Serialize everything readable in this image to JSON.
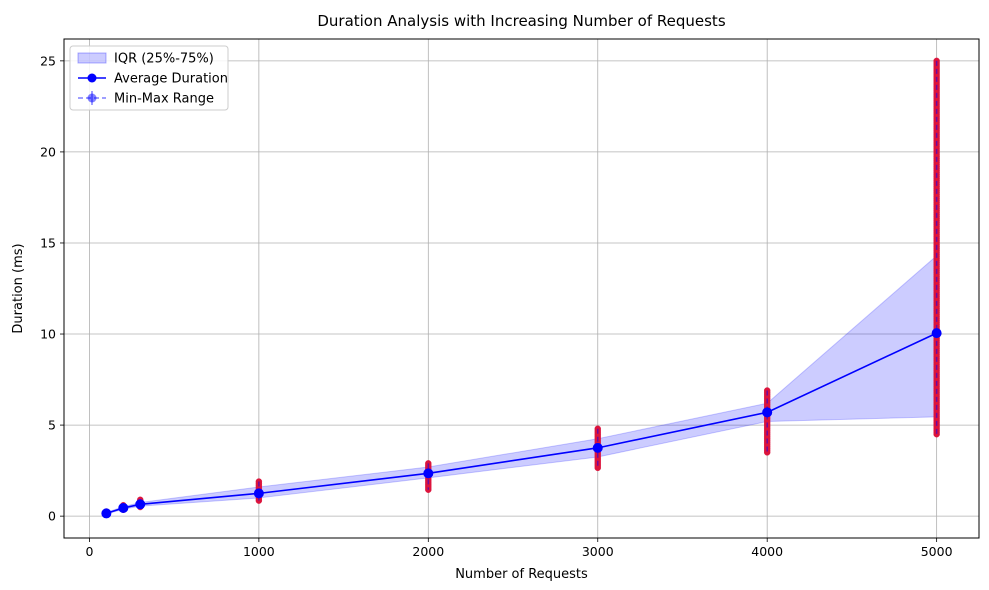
{
  "chart_data": {
    "type": "line",
    "title": "Duration Analysis with Increasing Number of Requests",
    "xlabel": "Number of Requests",
    "ylabel": "Duration (ms)",
    "xlim": [
      -150,
      5250
    ],
    "ylim": [
      -1.2,
      26.2
    ],
    "xticks": [
      0,
      1000,
      2000,
      3000,
      4000,
      5000
    ],
    "yticks": [
      0,
      5,
      10,
      15,
      20,
      25
    ],
    "grid": true,
    "legend_position": "top-left",
    "x": [
      100,
      200,
      300,
      1000,
      2000,
      3000,
      4000,
      5000
    ],
    "series": [
      {
        "name": "Average Duration",
        "kind": "line",
        "color": "#0000ff",
        "values": [
          0.15,
          0.45,
          0.65,
          1.25,
          2.35,
          3.75,
          5.7,
          10.05
        ]
      },
      {
        "name": "IQR (25%-75%)",
        "kind": "band",
        "color": "#0000ff",
        "q25": [
          0.12,
          0.38,
          0.55,
          1.0,
          2.1,
          3.25,
          5.2,
          5.45
        ],
        "q75": [
          0.2,
          0.52,
          0.75,
          1.6,
          2.7,
          4.25,
          6.2,
          14.3
        ]
      },
      {
        "name": "Min-Max Range",
        "kind": "errorbar",
        "color": "#0000ff",
        "min": [
          0.1,
          0.35,
          0.5,
          0.85,
          1.45,
          2.65,
          3.5,
          4.5
        ],
        "max": [
          0.25,
          0.6,
          0.9,
          1.9,
          2.9,
          4.8,
          6.9,
          25.0
        ]
      }
    ],
    "scatter_color": "#dc143c",
    "legend": [
      {
        "key": "IQR (25%-75%)",
        "label": "IQR (25%-75%)"
      },
      {
        "key": "Average Duration",
        "label": "Average Duration"
      },
      {
        "key": "Min-Max Range",
        "label": "Min-Max Range"
      }
    ]
  }
}
